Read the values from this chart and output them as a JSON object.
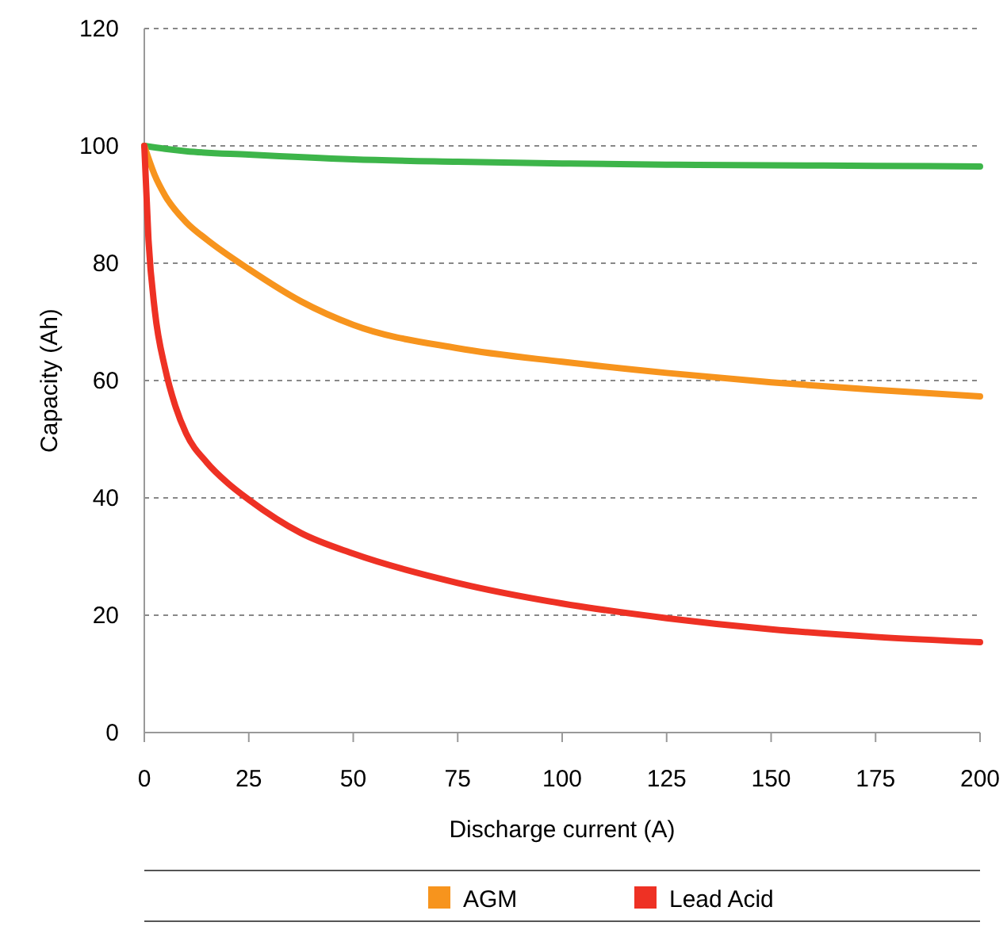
{
  "chart_data": {
    "type": "line",
    "xlabel": "Discharge current (A)",
    "ylabel": "Capacity (Ah)",
    "xlim": [
      0,
      200
    ],
    "xticks": [
      0,
      25,
      50,
      75,
      100,
      125,
      150,
      175,
      200
    ],
    "ylim": [
      0,
      120
    ],
    "yticks": [
      0,
      20,
      40,
      60,
      80,
      100,
      120
    ],
    "grid": "y",
    "legend": "bottom",
    "line_style": "solid",
    "series": [
      {
        "color": "#3db54a",
        "x": [
          0,
          5,
          10,
          25,
          50,
          75,
          100,
          125,
          150,
          175,
          200
        ],
        "values": [
          100,
          99.5,
          99.1,
          98.5,
          97.7,
          97.3,
          97,
          96.8,
          96.7,
          96.6,
          96.5
        ]
      },
      {
        "name": "AGM",
        "color": "#f7941d",
        "x": [
          0,
          2.5,
          5,
          10,
          15,
          25,
          37.5,
          50,
          75,
          100,
          125,
          150,
          175,
          200
        ],
        "values": [
          100,
          95,
          91.5,
          87,
          84,
          79,
          73.5,
          69.5,
          65.5,
          63.2,
          61.3,
          59.7,
          58.4,
          57.3
        ]
      },
      {
        "name": "Lead Acid",
        "color": "#ee3124",
        "x": [
          0,
          1,
          2.5,
          5,
          7.5,
          10,
          15,
          20,
          25,
          37.5,
          50,
          75,
          100,
          125,
          150,
          175,
          200
        ],
        "values": [
          100,
          84,
          72,
          62,
          55.5,
          51,
          46,
          42.5,
          39.7,
          34,
          30.5,
          25.5,
          22,
          19.5,
          17.6,
          16.3,
          15.4
        ]
      }
    ]
  }
}
